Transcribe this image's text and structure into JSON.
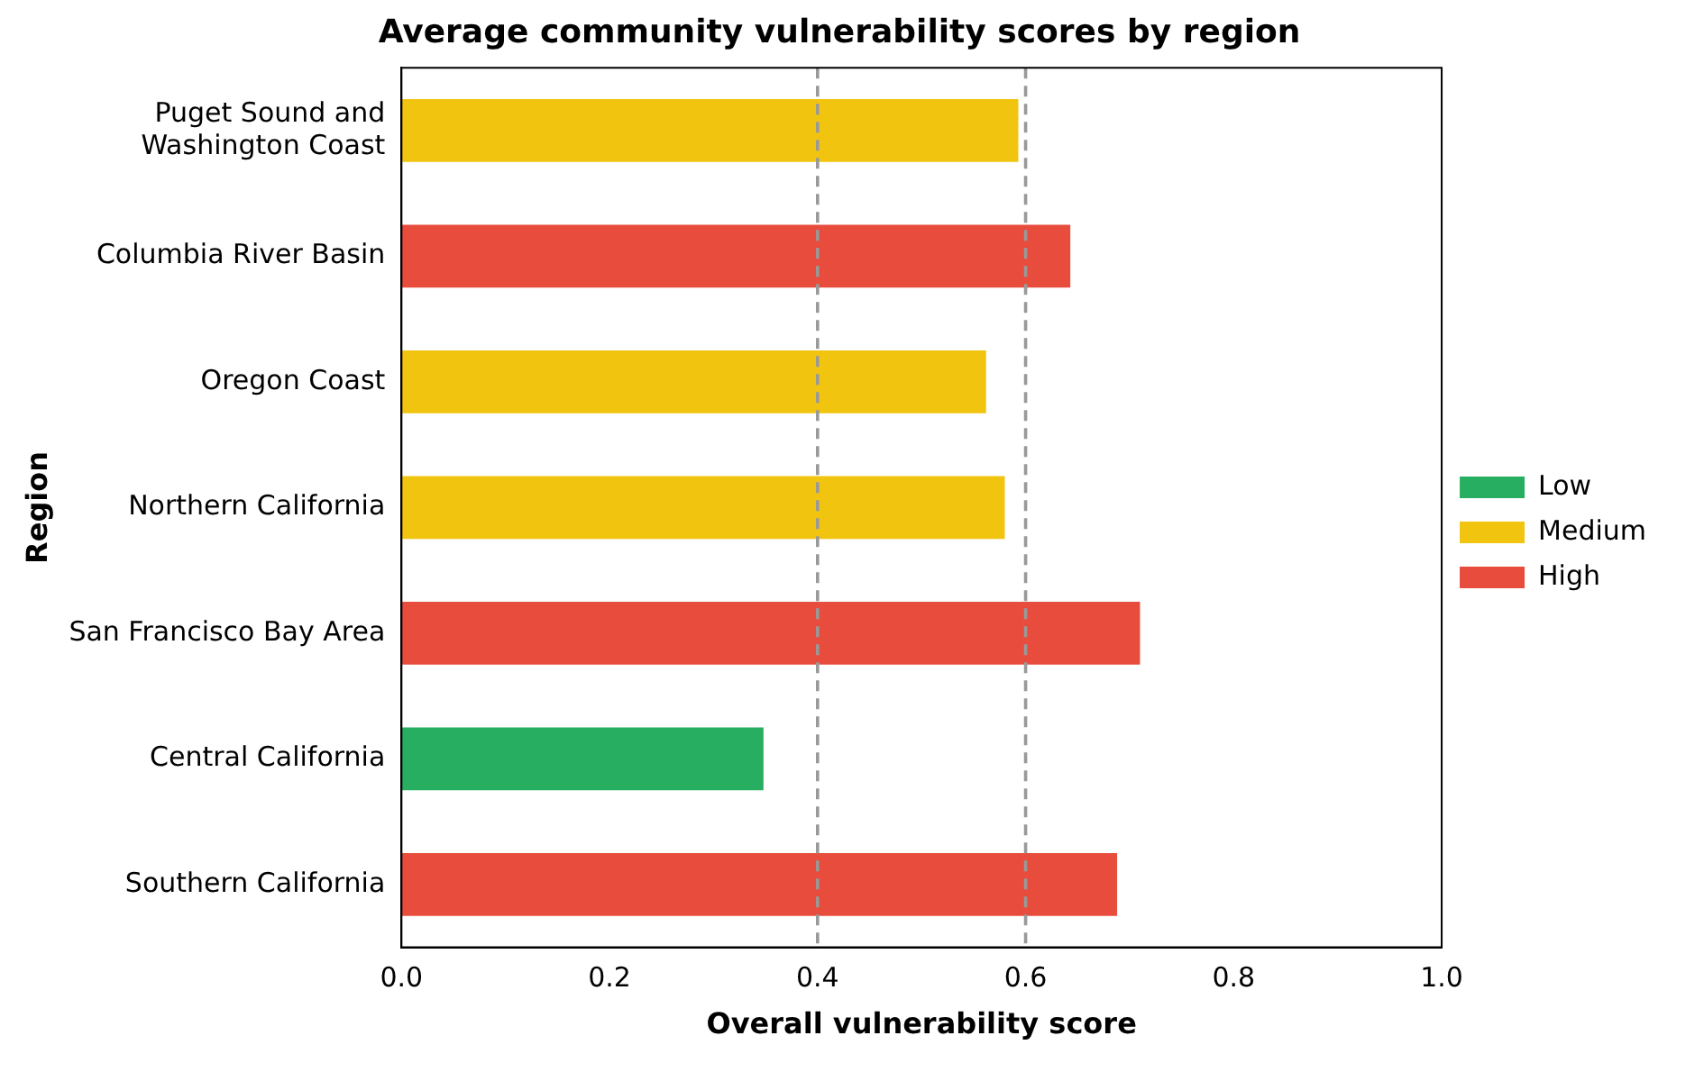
{
  "chart_data": {
    "type": "bar",
    "orientation": "horizontal",
    "title": "Average community vulnerability scores by region",
    "xlabel": "Overall vulnerability score",
    "ylabel": "Region",
    "categories": [
      "Puget Sound and\nWashington Coast",
      "Columbia River Basin",
      "Oregon Coast",
      "Northern California",
      "San Francisco Bay Area",
      "Central California",
      "Southern California"
    ],
    "series": [
      {
        "name": "Low",
        "color": "#27ae60",
        "values": [
          null,
          null,
          null,
          null,
          null,
          0.348,
          null
        ]
      },
      {
        "name": "Medium",
        "color": "#f1c40f",
        "values": [
          0.593,
          null,
          0.562,
          0.58,
          null,
          null,
          null
        ]
      },
      {
        "name": "High",
        "color": "#e74c3c",
        "values": [
          null,
          0.643,
          null,
          null,
          0.71,
          null,
          0.688
        ]
      }
    ],
    "xlim": [
      0,
      1
    ],
    "xticks": [
      {
        "value": 0,
        "label": "0.0"
      },
      0.2,
      0.4,
      0.6,
      0.8,
      {
        "value": 1,
        "label": "1.0"
      }
    ],
    "ref_lines": [
      {
        "axis": "x",
        "value": 0.4,
        "color": "#999999",
        "line_style": "dashed"
      },
      {
        "axis": "x",
        "value": 0.6,
        "color": "#999999",
        "line_style": "dashed"
      }
    ],
    "grid": false,
    "legend": "right"
  }
}
